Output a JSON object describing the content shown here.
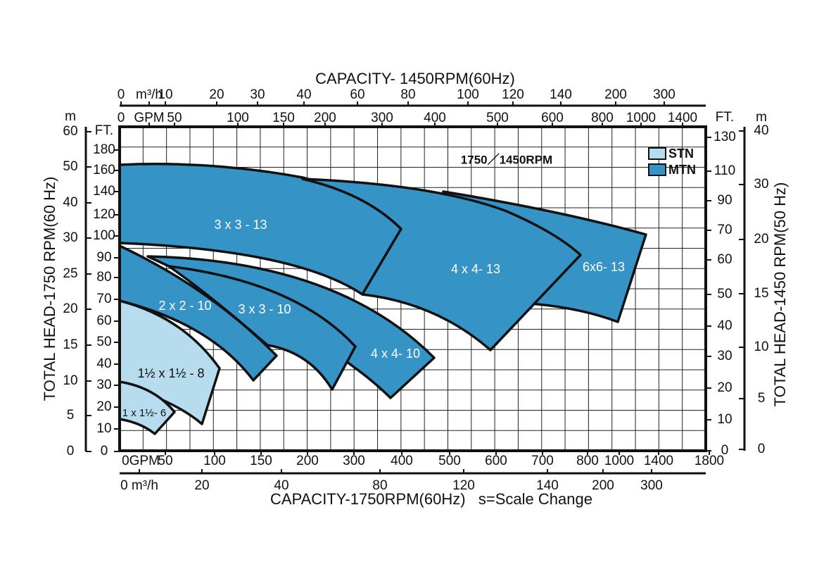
{
  "top_title": "CAPACITY- 1450RPM(60Hz)",
  "bottom_title": "CAPACITY-1750RPM(60Hz)   s=Scale Change",
  "left_title": "TOTAL HEAD-1750 RPM(60 Hz)",
  "right_title": "TOTAL HEAD-1450 RPM(50 Hz)",
  "speed_label": "1750／1450RPM",
  "legend": [
    {
      "name": "STN",
      "color": "#b6dced"
    },
    {
      "name": "MTN",
      "color": "#3593c6"
    }
  ],
  "top_m3h": [
    "0",
    "m³/h",
    "10",
    "20",
    "30",
    "40",
    "60",
    "80",
    "100",
    "120",
    "140",
    "200",
    "300"
  ],
  "top_gpm": [
    "0",
    "GPM",
    "50",
    "100",
    "150",
    "200",
    "300",
    "400",
    "500",
    "600",
    "800",
    "1000",
    "1400"
  ],
  "bottom_gpm": [
    "0GPM",
    "50",
    "100",
    "150",
    "200",
    "300",
    "400",
    "500",
    "600",
    "700",
    "800",
    "1000",
    "1400",
    "1800"
  ],
  "bottom_m3h": [
    "0 m³/h",
    "20",
    "40",
    "80",
    "120",
    "140",
    "200",
    "300"
  ],
  "left_m": [
    "m",
    "60",
    "50",
    "40",
    "30",
    "25",
    "20",
    "15",
    "10",
    "5",
    "0"
  ],
  "left_ft": [
    "FT.",
    "180",
    "160",
    "140",
    "120",
    "100",
    "90",
    "80",
    "70",
    "60",
    "50",
    "40",
    "30",
    "20",
    "10",
    "0"
  ],
  "right_ft": [
    "FT.",
    "130",
    "110",
    "90",
    "70",
    "60",
    "50",
    "40",
    "30",
    "20",
    "10",
    "0"
  ],
  "right_m": [
    "m",
    "40",
    "30",
    "20",
    "15",
    "10",
    "5",
    "0"
  ],
  "pumps": [
    "3 x 3 - 13",
    "6x6- 13",
    "4 x 4- 13",
    "4 x 4- 10",
    "3 x 3 - 10",
    "2 x 2 - 10",
    "1½ x 1½ - 8",
    "1 x 1½- 6"
  ]
}
